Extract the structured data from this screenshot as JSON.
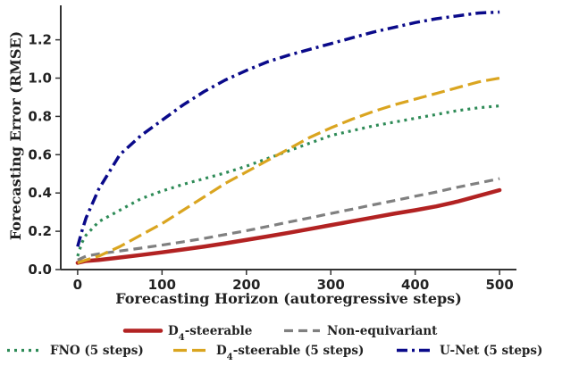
{
  "chart_data": {
    "type": "line",
    "title": "",
    "xlabel": "Forecasting Horizon (autoregressive steps)",
    "ylabel": "Forecasting Error (RMSE)",
    "xlim": [
      -20,
      520
    ],
    "ylim": [
      0,
      1.38
    ],
    "xticks": [
      0,
      100,
      200,
      300,
      400,
      500
    ],
    "yticks": [
      0.0,
      0.2,
      0.4,
      0.6,
      0.8,
      1.0,
      1.2
    ],
    "xtick_labels": [
      "0",
      "100",
      "200",
      "300",
      "400",
      "500"
    ],
    "ytick_labels": [
      "0.0",
      "0.2",
      "0.4",
      "0.6",
      "0.8",
      "1.0",
      "1.2"
    ],
    "grid": false,
    "legend_position": "bottom",
    "series": [
      {
        "name": "D4-steerable",
        "label_main": "D",
        "label_sub": "4",
        "label_rest": "-steerable",
        "color": "#b22222",
        "style": "solid",
        "x": [
          0,
          10,
          25,
          50,
          75,
          100,
          125,
          150,
          175,
          200,
          225,
          250,
          275,
          300,
          325,
          350,
          375,
          400,
          425,
          450,
          475,
          500
        ],
        "y": [
          0.035,
          0.045,
          0.05,
          0.063,
          0.076,
          0.09,
          0.105,
          0.12,
          0.137,
          0.155,
          0.173,
          0.192,
          0.212,
          0.232,
          0.252,
          0.272,
          0.292,
          0.31,
          0.33,
          0.355,
          0.385,
          0.415
        ]
      },
      {
        "name": "Non-equivariant",
        "color": "#808080",
        "style": "dashed",
        "x": [
          0,
          10,
          25,
          50,
          75,
          100,
          125,
          150,
          175,
          200,
          225,
          250,
          275,
          300,
          325,
          350,
          375,
          400,
          425,
          450,
          475,
          500
        ],
        "y": [
          0.05,
          0.07,
          0.082,
          0.097,
          0.112,
          0.128,
          0.145,
          0.163,
          0.183,
          0.203,
          0.225,
          0.248,
          0.27,
          0.293,
          0.315,
          0.338,
          0.36,
          0.383,
          0.405,
          0.43,
          0.452,
          0.475
        ]
      },
      {
        "name": "FNO (5 steps)",
        "color": "#2e8b57",
        "style": "dotted",
        "x": [
          0,
          5,
          10,
          25,
          50,
          75,
          100,
          125,
          150,
          175,
          200,
          225,
          250,
          275,
          300,
          325,
          350,
          375,
          400,
          425,
          450,
          475,
          500
        ],
        "y": [
          0.07,
          0.14,
          0.18,
          0.25,
          0.31,
          0.37,
          0.41,
          0.445,
          0.475,
          0.505,
          0.54,
          0.58,
          0.62,
          0.66,
          0.7,
          0.725,
          0.75,
          0.77,
          0.79,
          0.81,
          0.83,
          0.845,
          0.855
        ]
      },
      {
        "name": "D4-steerable (5 steps)",
        "label_main": "D",
        "label_sub": "4",
        "label_rest": "-steerable (5 steps)",
        "color": "#daa520",
        "style": "longdash",
        "x": [
          0,
          10,
          25,
          50,
          75,
          100,
          125,
          150,
          175,
          200,
          225,
          250,
          275,
          300,
          325,
          350,
          375,
          400,
          425,
          450,
          475,
          500
        ],
        "y": [
          0.035,
          0.05,
          0.07,
          0.12,
          0.18,
          0.24,
          0.31,
          0.38,
          0.45,
          0.51,
          0.57,
          0.63,
          0.69,
          0.74,
          0.785,
          0.825,
          0.86,
          0.89,
          0.92,
          0.95,
          0.98,
          1.0
        ]
      },
      {
        "name": "U-Net (5 steps)",
        "color": "#0a0a8a",
        "style": "dashdot",
        "x": [
          0,
          5,
          10,
          25,
          50,
          75,
          100,
          125,
          150,
          175,
          200,
          225,
          250,
          275,
          300,
          325,
          350,
          375,
          400,
          425,
          450,
          475,
          500
        ],
        "y": [
          0.12,
          0.2,
          0.27,
          0.42,
          0.6,
          0.7,
          0.78,
          0.86,
          0.93,
          0.99,
          1.04,
          1.085,
          1.12,
          1.15,
          1.18,
          1.21,
          1.24,
          1.265,
          1.29,
          1.31,
          1.325,
          1.34,
          1.345
        ]
      }
    ]
  }
}
